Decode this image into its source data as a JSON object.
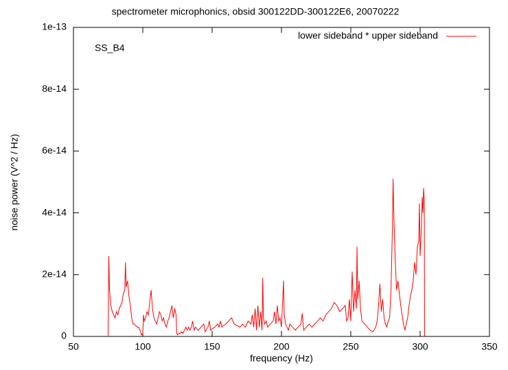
{
  "chart_data": {
    "type": "line",
    "title": "spectrometer microphonics, obsid 300122DD-300122E6, 20070222",
    "xlabel": "frequency (Hz)",
    "ylabel": "noise power (V^2 / Hz)",
    "annotation": "SS_B4",
    "legend": "top-right",
    "xlim": [
      50,
      350
    ],
    "xticks": [
      50,
      100,
      150,
      200,
      250,
      300,
      350
    ],
    "ylim": [
      0,
      1e-13
    ],
    "yticks": [
      0,
      2e-14,
      4e-14,
      6e-14,
      8e-14,
      1e-13
    ],
    "x": [
      75,
      75.5,
      76,
      77,
      78,
      79,
      80,
      81,
      82,
      83,
      84,
      85,
      86,
      87,
      87.5,
      88,
      89,
      90,
      91,
      92,
      93,
      94,
      95,
      96,
      97,
      98,
      99,
      100,
      100.5,
      101,
      102,
      103,
      104,
      105,
      106,
      107,
      108,
      109,
      110,
      111,
      112,
      113,
      114,
      115,
      116,
      117,
      118,
      119,
      120,
      121,
      122,
      123,
      124,
      124.5,
      125,
      126,
      127,
      128,
      129,
      130,
      131,
      132,
      133,
      134,
      135,
      136,
      137,
      138,
      140,
      142,
      144,
      145,
      147,
      148,
      149,
      150,
      152,
      154,
      155,
      156,
      157,
      158,
      160,
      162,
      164,
      165,
      166,
      168,
      170,
      172,
      174,
      176,
      178,
      179,
      180,
      181,
      182,
      183,
      184,
      185,
      186,
      186.5,
      187,
      188,
      189,
      190,
      192,
      194,
      195,
      196,
      197,
      198,
      199,
      200,
      201,
      201.5,
      202,
      203,
      204,
      205,
      206,
      208,
      210,
      212,
      214,
      215,
      216,
      218,
      220,
      222,
      224,
      226,
      228,
      230,
      232,
      234,
      236,
      238,
      240,
      242,
      244,
      246,
      247,
      248,
      249,
      250,
      251,
      252,
      253,
      254,
      254.5,
      255,
      256,
      257,
      258,
      260,
      262,
      264,
      266,
      268,
      269,
      270,
      271,
      272,
      273,
      274,
      275,
      276,
      277,
      278,
      279,
      280,
      280.5,
      281,
      282,
      283,
      284,
      285,
      286,
      287,
      288,
      289,
      290,
      291,
      292,
      293,
      294,
      295,
      296,
      297,
      298,
      299,
      299.5,
      300,
      301,
      301.5,
      302,
      302.5,
      303,
      303.2
    ],
    "series": [
      {
        "name": "lower sideband * upper sideband",
        "color": "#ff0000",
        "values": [
          0,
          2.6e-14,
          1.5e-14,
          1e-14,
          8e-15,
          7e-15,
          6e-15,
          8e-15,
          7e-15,
          9e-15,
          1e-14,
          1.1e-14,
          1.4e-14,
          1.5e-14,
          2.4e-14,
          1.6e-14,
          1.8e-14,
          1.3e-14,
          1e-14,
          6e-15,
          4e-15,
          4e-15,
          3.5e-15,
          3e-15,
          3e-15,
          2e-15,
          5e-16,
          1e-15,
          7e-15,
          5e-15,
          6e-15,
          8e-15,
          7e-15,
          1.1e-14,
          1.5e-14,
          9e-15,
          6e-15,
          5e-15,
          4e-15,
          6e-15,
          8e-15,
          7e-15,
          5e-15,
          6e-15,
          4e-15,
          3e-15,
          5e-15,
          6e-15,
          8e-15,
          1e-14,
          6e-15,
          9e-15,
          7e-15,
          1e-15,
          5e-16,
          1e-15,
          1e-15,
          1.5e-15,
          1e-15,
          2e-15,
          3e-15,
          2e-15,
          3e-15,
          2e-15,
          3e-15,
          5e-15,
          2e-15,
          3e-15,
          2e-15,
          3e-15,
          4e-15,
          1.5e-15,
          3e-15,
          5e-15,
          2e-15,
          2.5e-15,
          3e-15,
          4e-15,
          3e-15,
          5e-15,
          3e-15,
          3.5e-15,
          4e-15,
          5e-15,
          6e-15,
          5e-15,
          4e-15,
          3.5e-15,
          3e-15,
          4e-15,
          3e-15,
          5e-15,
          4e-15,
          7e-15,
          3e-15,
          9e-15,
          2e-15,
          1e-14,
          3e-15,
          8e-15,
          2e-15,
          1.9e-14,
          6e-15,
          4e-15,
          5e-15,
          3e-15,
          4e-15,
          5e-15,
          8e-15,
          4e-15,
          1e-14,
          5e-15,
          6e-15,
          3e-15,
          1.3e-14,
          1.8e-14,
          7e-15,
          4e-15,
          3e-15,
          2e-15,
          4e-15,
          3e-15,
          2e-15,
          3e-15,
          4e-15,
          7.5e-15,
          2e-15,
          3e-15,
          4e-15,
          3e-15,
          4e-15,
          5e-15,
          6e-15,
          5e-15,
          7e-15,
          8e-15,
          9e-15,
          1.1e-14,
          1e-14,
          8e-15,
          9e-15,
          1e-14,
          5e-15,
          6e-15,
          1.2e-14,
          5e-15,
          2.1e-14,
          8e-15,
          1.5e-14,
          9e-15,
          2.9e-14,
          1.2e-14,
          1.8e-14,
          9e-15,
          5e-15,
          4e-15,
          3e-15,
          2e-15,
          1.5e-15,
          3e-15,
          5e-15,
          1e-14,
          1.7e-14,
          8e-15,
          1.2e-14,
          6e-15,
          4e-15,
          3e-15,
          5e-15,
          6e-15,
          1.5e-14,
          3.5e-14,
          5.1e-14,
          4e-14,
          2.5e-14,
          1.5e-14,
          1.8e-14,
          1.4e-14,
          1e-14,
          7e-15,
          4e-15,
          2e-15,
          4e-15,
          6e-15,
          1e-14,
          1.3e-14,
          1.5e-14,
          1.8e-14,
          2.4e-14,
          2e-14,
          2.9e-14,
          3.1e-14,
          4.3e-14,
          2.6e-14,
          3.6e-14,
          4.5e-14,
          4e-14,
          4.8e-14,
          4.4e-14,
          0
        ]
      }
    ]
  }
}
